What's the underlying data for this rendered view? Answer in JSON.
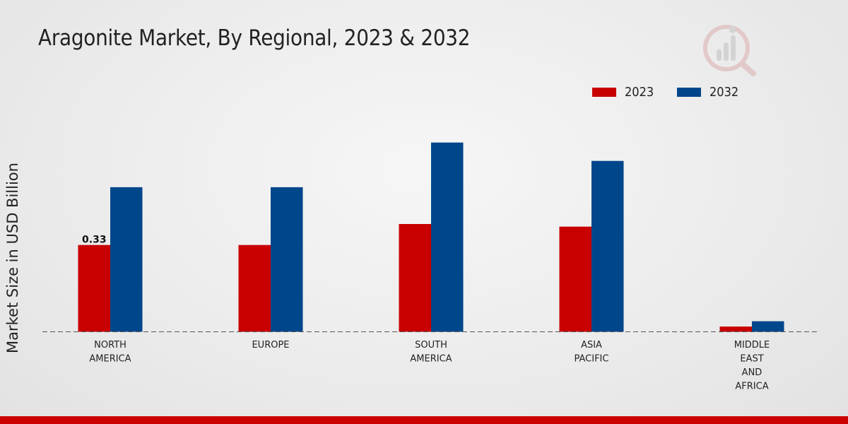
{
  "chart_data": {
    "type": "bar",
    "title": "Aragonite Market, By Regional, 2023 & 2032",
    "xlabel": "",
    "ylabel": "Market Size in USD Billion",
    "categories": [
      [
        "NORTH",
        "AMERICA"
      ],
      [
        "EUROPE"
      ],
      [
        "SOUTH",
        "AMERICA"
      ],
      [
        "ASIA",
        "PACIFIC"
      ],
      [
        "MIDDLE",
        "EAST",
        "AND",
        "AFRICA"
      ]
    ],
    "series": [
      {
        "name": "2023",
        "color": "#c80000",
        "values": [
          0.33,
          0.33,
          0.41,
          0.4,
          0.02
        ]
      },
      {
        "name": "2032",
        "color": "#00468b",
        "values": [
          0.55,
          0.55,
          0.72,
          0.65,
          0.04
        ]
      }
    ],
    "data_labels": [
      {
        "series": 0,
        "index": 0,
        "text": "0.33"
      }
    ],
    "ylim": [
      0,
      1.0
    ],
    "grid": false,
    "legend_position": "top-right"
  },
  "colors": {
    "accent": "#c80000",
    "secondary": "#00468b",
    "bottom_bar": "#cc0000"
  },
  "logo_icon": "market-research-logo-icon"
}
